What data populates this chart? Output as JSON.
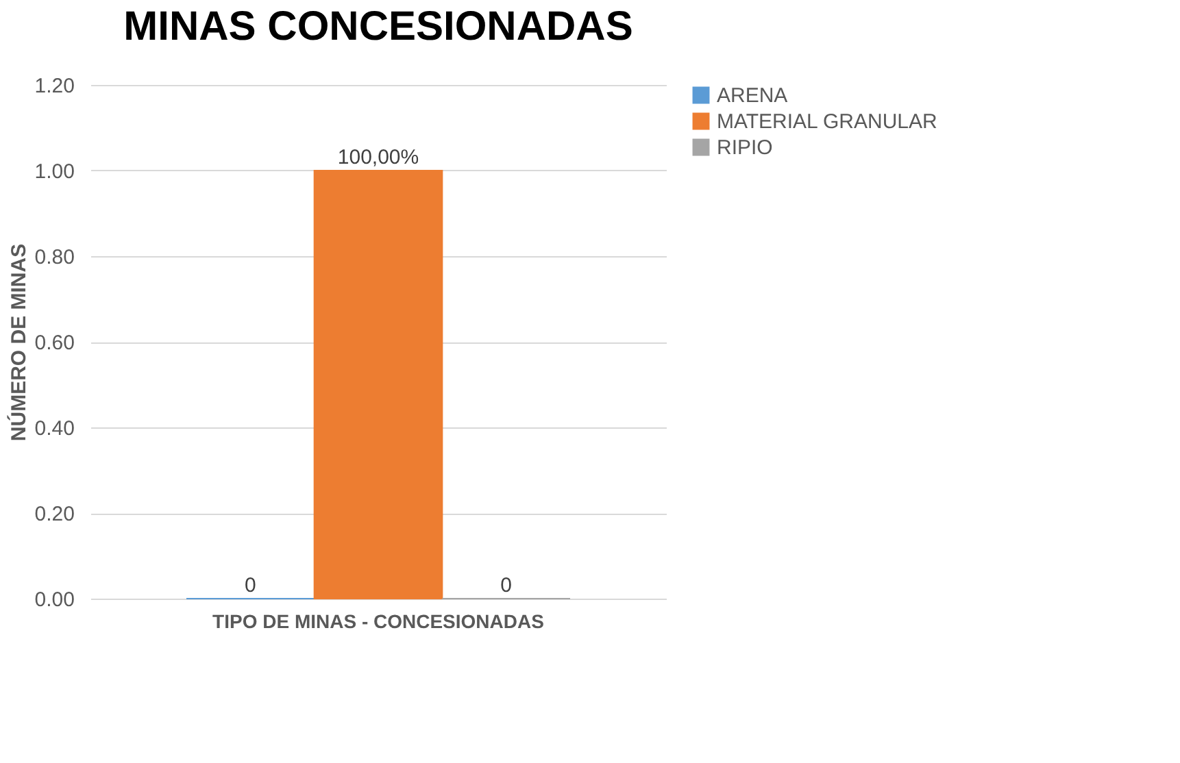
{
  "chart_data": {
    "type": "bar",
    "title": "MINAS CONCESIONADAS",
    "ylabel": "NÚMERO DE MINAS",
    "categories": [
      "TIPO DE MINAS - CONCESIONADAS"
    ],
    "series": [
      {
        "name": "ARENA",
        "color": "#5b9bd5",
        "values": [
          0
        ],
        "value_labels": [
          "0"
        ]
      },
      {
        "name": "MATERIAL GRANULAR",
        "color": "#ed7d31",
        "values": [
          1
        ],
        "value_labels": [
          "100,00%"
        ]
      },
      {
        "name": "RIPIO",
        "color": "#a5a5a5",
        "values": [
          0
        ],
        "value_labels": [
          "0"
        ]
      }
    ],
    "ylim": [
      0,
      1.2
    ],
    "yticks": [
      {
        "value": 0,
        "label": "0.00"
      },
      {
        "value": 0.2,
        "label": "0.20"
      },
      {
        "value": 0.4,
        "label": "0.40"
      },
      {
        "value": 0.6,
        "label": "0.60"
      },
      {
        "value": 0.8,
        "label": "0.80"
      },
      {
        "value": 1,
        "label": "1.00"
      },
      {
        "value": 1.2,
        "label": "1.20"
      }
    ],
    "grid": "y",
    "legend": "right"
  }
}
